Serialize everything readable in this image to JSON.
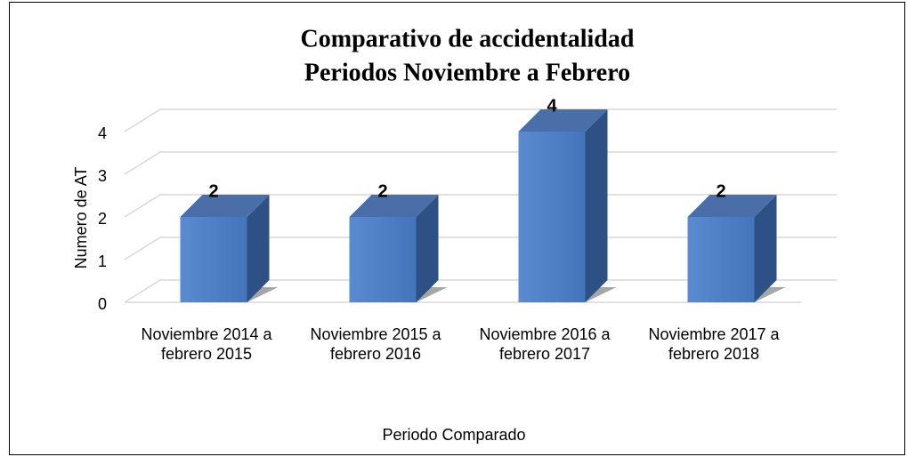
{
  "chart_data": {
    "type": "bar3d",
    "title": [
      "Comparativo de accidentalidad",
      "Periodos Noviembre a Febrero"
    ],
    "categories": [
      "Noviembre 2014 a febrero 2015",
      "Noviembre 2015 a febrero 2016",
      "Noviembre 2016 a febrero 2017",
      "Noviembre 2017 a febrero 2018"
    ],
    "values": [
      2,
      2,
      4,
      2
    ],
    "color": "#4f81c7",
    "xlabel": "Periodo Comparado",
    "ylabel": "Numero de AT",
    "ylim": [
      0,
      4
    ],
    "yticks": [
      0,
      1,
      2,
      3,
      4
    ],
    "grid": true
  }
}
